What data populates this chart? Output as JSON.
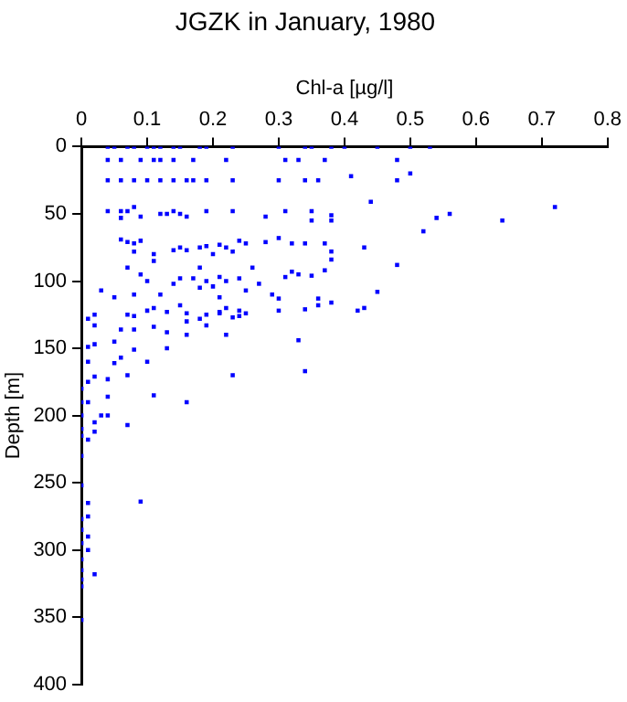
{
  "chart_data": {
    "type": "scatter",
    "title": "JGZK in January, 1980",
    "xlabel": "Chl-a [µg/l]",
    "ylabel": "Depth [m]",
    "xlim": [
      0,
      0.8
    ],
    "xticks": [
      0,
      0.1,
      0.2,
      0.3,
      0.4,
      0.5,
      0.6,
      0.7,
      0.8
    ],
    "ylim": [
      400,
      0
    ],
    "yticks": [
      0,
      50,
      100,
      150,
      200,
      250,
      300,
      350,
      400
    ],
    "grid": false,
    "legend": false,
    "marker": "square",
    "series": [
      {
        "color": "#0000ff",
        "x": [
          0.04,
          0.05,
          0.07,
          0.08,
          0.1,
          0.11,
          0.12,
          0.14,
          0.15,
          0.18,
          0.19,
          0.23,
          0.3,
          0.34,
          0.35,
          0.38,
          0.4,
          0.45,
          0.5,
          0.53,
          0.04,
          0.06,
          0.09,
          0.11,
          0.12,
          0.14,
          0.17,
          0.22,
          0.31,
          0.33,
          0.37,
          0.48,
          0.04,
          0.06,
          0.08,
          0.1,
          0.12,
          0.14,
          0.16,
          0.17,
          0.19,
          0.23,
          0.3,
          0.34,
          0.36,
          0.48,
          0.41,
          0.5,
          0.04,
          0.06,
          0.07,
          0.08,
          0.06,
          0.09,
          0.12,
          0.13,
          0.14,
          0.15,
          0.16,
          0.19,
          0.23,
          0.28,
          0.31,
          0.35,
          0.35,
          0.38,
          0.38,
          0.44,
          0.56,
          0.54,
          0.64,
          0.72,
          0.52,
          0.06,
          0.07,
          0.08,
          0.09,
          0.08,
          0.11,
          0.11,
          0.14,
          0.15,
          0.16,
          0.18,
          0.19,
          0.2,
          0.21,
          0.22,
          0.23,
          0.24,
          0.25,
          0.28,
          0.3,
          0.32,
          0.34,
          0.37,
          0.38,
          0.38,
          0.43,
          0.26,
          0.18,
          0.07,
          0.48,
          0.1,
          0.09,
          0.14,
          0.15,
          0.17,
          0.18,
          0.19,
          0.2,
          0.21,
          0.22,
          0.24,
          0.25,
          0.27,
          0.31,
          0.32,
          0.33,
          0.35,
          0.37,
          0.45,
          0.03,
          0.05,
          0.08,
          0.12,
          0.21,
          0.29,
          0.3,
          0.36,
          0.02,
          0.07,
          0.1,
          0.13,
          0.16,
          0.19,
          0.21,
          0.22,
          0.24,
          0.25,
          0.3,
          0.34,
          0.36,
          0.38,
          0.43,
          0.42,
          0.01,
          0.01,
          0.01,
          0.01,
          0.01,
          0.02,
          0.02,
          0.02,
          0.04,
          0.05,
          0.04,
          0.05,
          0.06,
          0.06,
          0.07,
          0.08,
          0.08,
          0.08,
          0.11,
          0.11,
          0.11,
          0.13,
          0.13,
          0.1,
          0.15,
          0.16,
          0.16,
          0.16,
          0.23,
          0.19,
          0.22,
          0.23,
          0.21,
          0.24,
          0.18,
          0.33,
          0.34,
          0.09,
          0,
          0,
          0,
          0,
          0,
          0.01,
          0.02,
          0.02,
          0.03,
          0.04,
          0.07,
          0,
          0,
          0.01,
          0,
          0,
          0.01,
          0,
          0.01,
          0,
          0,
          0.02,
          0,
          0,
          0,
          0.01
        ],
        "values": [
          0,
          0,
          0,
          0,
          0,
          0,
          0,
          0,
          0,
          0,
          0,
          0,
          0,
          0,
          0,
          0,
          0,
          0,
          0,
          0,
          10,
          10,
          10,
          10,
          10,
          10,
          10,
          10,
          10,
          10,
          10,
          10,
          25,
          25,
          25,
          25,
          25,
          25,
          25,
          25,
          25,
          25,
          25,
          25,
          25,
          25,
          22,
          20,
          48,
          48,
          48,
          45,
          53,
          52,
          50,
          50,
          48,
          50,
          52,
          48,
          48,
          52,
          48,
          48,
          55,
          51,
          55,
          41,
          50,
          53,
          55,
          45,
          63,
          69,
          71,
          72,
          70,
          78,
          80,
          85,
          77,
          75,
          77,
          75,
          74,
          80,
          73,
          75,
          78,
          70,
          72,
          71,
          68,
          72,
          72,
          72,
          78,
          84,
          75,
          90,
          90,
          90,
          88,
          100,
          95,
          102,
          98,
          98,
          105,
          100,
          104,
          97,
          100,
          98,
          107,
          102,
          97,
          93,
          95,
          96,
          92,
          108,
          107,
          112,
          110,
          110,
          112,
          110,
          113,
          113,
          125,
          125,
          122,
          123,
          124,
          125,
          124,
          120,
          122,
          124,
          122,
          121,
          118,
          116,
          120,
          122,
          128,
          149,
          160,
          175,
          190,
          171,
          147,
          133,
          173,
          161,
          186,
          145,
          136,
          157,
          170,
          151,
          136,
          126,
          134,
          185,
          120,
          150,
          138,
          160,
          118,
          190,
          140,
          130,
          127,
          133,
          140,
          170,
          123,
          126,
          128,
          144,
          167,
          264,
          180,
          190,
          200,
          210,
          215,
          218,
          205,
          212,
          200,
          200,
          207,
          230,
          252,
          265,
          277,
          285,
          290,
          295,
          300,
          307,
          315,
          318,
          322,
          327,
          352,
          275
        ]
      }
    ]
  }
}
